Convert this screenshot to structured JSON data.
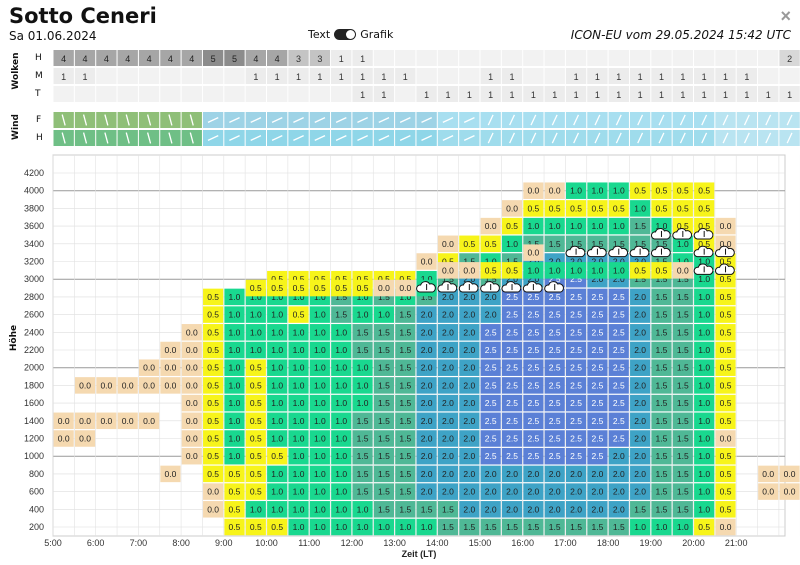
{
  "header": {
    "title": "Sotto Ceneri",
    "date": "Sa 01.06.2024",
    "toggle_left": "Text",
    "toggle_right": "Grafik",
    "model_run": "ICON-EU vom 29.05.2024 15:42 UTC",
    "close_symbol": "×"
  },
  "clouds": {
    "label": "Wolken",
    "rows": [
      "H",
      "M",
      "T"
    ],
    "H": [
      4,
      4,
      4,
      4,
      4,
      4,
      4,
      5,
      5,
      4,
      4,
      3,
      3,
      1,
      1,
      null,
      null,
      null,
      null,
      null,
      null,
      null,
      null,
      null,
      null,
      null,
      null,
      null,
      null,
      null,
      null,
      null,
      null,
      null,
      2,
      2
    ],
    "M": [
      1,
      1,
      null,
      null,
      null,
      null,
      null,
      null,
      null,
      1,
      1,
      1,
      1,
      1,
      1,
      1,
      1,
      null,
      null,
      null,
      1,
      1,
      null,
      null,
      1,
      1,
      1,
      1,
      1,
      1,
      1,
      1,
      1,
      null,
      null,
      null
    ],
    "T": [
      null,
      null,
      null,
      null,
      null,
      null,
      null,
      null,
      null,
      null,
      null,
      null,
      null,
      null,
      1,
      1,
      null,
      1,
      1,
      1,
      1,
      1,
      1,
      1,
      1,
      1,
      1,
      1,
      1,
      1,
      1,
      1,
      1,
      1,
      1,
      1
    ]
  },
  "wind": {
    "label": "Wind",
    "rows": [
      "F",
      "H"
    ]
  },
  "thermals": {
    "y_label": "Höhe",
    "x_label": "Zeit (LT)",
    "y_ticks": [
      "200",
      "400",
      "600",
      "800",
      "1000",
      "1200",
      "1400",
      "1600",
      "1800",
      "2000",
      "2200",
      "2400",
      "2600",
      "2800",
      "3000",
      "3200",
      "3400",
      "3600",
      "3800",
      "4000",
      "4200"
    ],
    "x_ticks": [
      "5:00",
      "6:00",
      "7:00",
      "8:00",
      "9:00",
      "10:00",
      "11:00",
      "12:00",
      "13:00",
      "14:00",
      "15:00",
      "16:00",
      "17:00",
      "18:00",
      "19:00",
      "20:00",
      "21:00"
    ],
    "columns": [
      {
        "b": 1200,
        "v": [
          "0.0",
          "0.0"
        ]
      },
      {
        "b": 1200,
        "v": [
          "0.0",
          "0.0",
          null,
          "0.0"
        ]
      },
      {
        "b": 1200,
        "v": [
          null,
          "0.0",
          null,
          "0.0"
        ]
      },
      {
        "b": 1400,
        "v": [
          "0.0",
          null,
          "0.0"
        ]
      },
      {
        "b": 1400,
        "v": [
          "0.0",
          null,
          "0.0",
          "0.0"
        ]
      },
      {
        "b": 800,
        "v": [
          "0.0",
          null,
          null,
          null,
          null,
          "0.0",
          "0.0",
          "0.0"
        ]
      },
      {
        "b": 1000,
        "v": [
          "0.0",
          "0.0",
          "0.0",
          "0.0",
          "0.0",
          "0.0",
          "0.0",
          "0.0"
        ]
      },
      {
        "b": 400,
        "v": [
          "0.0",
          "0.0",
          "0.5",
          "0.5",
          "0.5",
          "0.5",
          "0.5",
          "0.5",
          "0.5",
          "0.5",
          "0.5",
          "0.5",
          "0.5"
        ]
      },
      {
        "b": 200,
        "v": [
          "0.5",
          "0.5",
          "0.5",
          "0.5",
          "1.0",
          "1.0",
          "1.0",
          "1.0",
          "1.0",
          "1.0",
          "1.0",
          "1.0",
          "1.0",
          "1.0"
        ]
      },
      {
        "b": 200,
        "v": [
          "0.5",
          "1.0",
          "0.5",
          "0.5",
          "0.5",
          "0.5",
          "0.5",
          "0.5",
          "0.5",
          "0.5",
          "1.0",
          "1.0",
          "1.0",
          "1.0"
        ]
      },
      {
        "b": 200,
        "v": [
          "0.5",
          "1.0",
          "1.0",
          "1.0",
          "0.5",
          "1.0",
          "1.0",
          "1.0",
          "1.0",
          "1.0",
          "1.0",
          "1.0",
          "1.0",
          "1.0",
          "0.5"
        ]
      },
      {
        "b": 200,
        "v": [
          "1.0",
          "1.0",
          "1.0",
          "1.0",
          "1.0",
          "1.0",
          "1.0",
          "1.0",
          "1.0",
          "1.0",
          "1.0",
          "1.0",
          "0.5",
          "1.0",
          "0.5"
        ]
      },
      {
        "b": 200,
        "v": [
          "1.0",
          "1.0",
          "1.0",
          "1.0",
          "1.0",
          "1.0",
          "1.0",
          "1.0",
          "1.0",
          "1.0",
          "1.0",
          "1.0",
          "1.0",
          "1.0",
          "0.5"
        ]
      },
      {
        "b": 200,
        "v": [
          "1.0",
          "1.0",
          "1.0",
          "1.0",
          "1.0",
          "1.0",
          "1.0",
          "1.0",
          "1.0",
          "1.0",
          "1.0",
          "1.0",
          "1.5",
          "1.5",
          "0.5"
        ]
      },
      {
        "b": 200,
        "v": [
          "1.0",
          "1.0",
          "1.5",
          "1.5",
          "1.5",
          "1.5",
          "1.5",
          "1.0",
          "1.0",
          "1.0",
          "1.5",
          "1.5",
          "1.0",
          "1.0",
          "0.5"
        ]
      },
      {
        "b": 200,
        "v": [
          "1.0",
          "1.5",
          "1.5",
          "1.5",
          "1.5",
          "1.5",
          "1.5",
          "1.5",
          "1.5",
          "1.5",
          "1.5",
          "1.5",
          "1.0",
          "1.5",
          "0.5"
        ]
      },
      {
        "b": 200,
        "v": [
          "1.0",
          "1.5",
          "1.5",
          "1.5",
          "1.5",
          "1.5",
          "1.5",
          "1.5",
          "1.5",
          "1.5",
          "1.5",
          "1.5",
          "1.5",
          "1.0",
          "0.5"
        ]
      },
      {
        "b": 200,
        "v": [
          "1.0",
          "1.5",
          "2.0",
          "2.0",
          "2.0",
          "2.0",
          "2.0",
          "2.0",
          "2.0",
          "2.0",
          "2.0",
          "2.0",
          "2.0",
          "1.5",
          "1.0",
          "0.0"
        ]
      },
      {
        "b": 200,
        "v": [
          "1.5",
          "1.5",
          "2.0",
          "2.0",
          "2.0",
          "2.0",
          "2.0",
          "2.0",
          "2.0",
          "2.0",
          "2.0",
          "2.0",
          "2.0",
          "2.0",
          "1.5",
          "0.5",
          "0.0"
        ]
      },
      {
        "b": 200,
        "v": [
          "1.5",
          "2.0",
          "2.0",
          "2.0",
          "2.0",
          "2.0",
          "2.0",
          "2.0",
          "2.0",
          "2.0",
          "2.0",
          "2.0",
          "2.0",
          "2.0",
          "2.0",
          "1.5",
          "0.5"
        ]
      },
      {
        "b": 200,
        "v": [
          "1.5",
          "2.0",
          "2.0",
          "2.0",
          "2.5",
          "2.5",
          "2.5",
          "2.5",
          "2.5",
          "2.5",
          "2.5",
          "2.5",
          "2.0",
          "2.0",
          "1.5",
          "1.0",
          "0.5",
          "0.0"
        ]
      },
      {
        "b": 200,
        "v": [
          "1.5",
          "2.0",
          "2.0",
          "2.0",
          "2.5",
          "2.5",
          "2.5",
          "2.5",
          "2.5",
          "2.5",
          "2.5",
          "2.5",
          "2.5",
          "2.5",
          "2.0",
          "1.5",
          "1.0",
          "0.5",
          "0.0"
        ]
      },
      {
        "b": 200,
        "v": [
          "1.5",
          "2.0",
          "2.0",
          "2.0",
          "2.5",
          "2.5",
          "2.5",
          "2.5",
          "2.5",
          "2.5",
          "2.5",
          "2.5",
          "2.5",
          "2.5",
          "2.0",
          "2.0",
          "1.5",
          "1.0",
          "0.5",
          "0.0"
        ]
      },
      {
        "b": 200,
        "v": [
          "1.5",
          "2.0",
          "2.0",
          "2.0",
          "2.5",
          "2.5",
          "2.5",
          "2.5",
          "2.5",
          "2.5",
          "2.5",
          "2.5",
          "2.5",
          "2.5",
          "2.5",
          "2.0",
          "1.5",
          "1.0",
          "0.5",
          "0.0"
        ]
      },
      {
        "b": 200,
        "v": [
          "1.5",
          "2.0",
          "2.0",
          "2.0",
          "2.5",
          "2.5",
          "2.5",
          "2.5",
          "2.5",
          "2.5",
          "2.5",
          "2.5",
          "2.5",
          "2.5",
          "2.5",
          "2.0",
          "1.5",
          "1.0",
          "0.5",
          "1.0"
        ]
      },
      {
        "b": 200,
        "v": [
          "1.5",
          "2.0",
          "2.0",
          "2.0",
          "2.5",
          "2.5",
          "2.5",
          "2.5",
          "2.5",
          "2.5",
          "2.5",
          "2.5",
          "2.5",
          "2.5",
          "2.0",
          "2.0",
          "1.5",
          "1.0",
          "0.5",
          "1.0"
        ]
      },
      {
        "b": 200,
        "v": [
          "1.5",
          "2.0",
          "2.0",
          "2.0",
          "2.0",
          "2.5",
          "2.5",
          "2.5",
          "2.5",
          "2.5",
          "2.5",
          "2.5",
          "2.5",
          "2.5",
          "2.0",
          "2.0",
          "1.5",
          "1.0",
          "0.5",
          "1.0"
        ]
      },
      {
        "b": 200,
        "v": [
          "1.0",
          "1.5",
          "2.0",
          "2.0",
          "2.0",
          "2.0",
          "2.0",
          "2.0",
          "2.0",
          "2.0",
          "2.0",
          "2.0",
          "2.0",
          "2.0",
          "1.5",
          "2.0",
          "1.5",
          "1.5",
          "1.0",
          "0.5"
        ]
      },
      {
        "b": 200,
        "v": [
          "1.0",
          "1.5",
          "1.5",
          "1.5",
          "1.5",
          "1.5",
          "1.5",
          "1.5",
          "1.5",
          "1.5",
          "1.5",
          "1.5",
          "1.5",
          "1.5",
          "1.5",
          "1.5",
          "1.5",
          "1.0",
          "0.5",
          "0.5"
        ]
      },
      {
        "b": 200,
        "v": [
          "1.0",
          "1.5",
          "1.5",
          "1.5",
          "1.5",
          "1.5",
          "1.5",
          "1.5",
          "1.5",
          "1.5",
          "1.5",
          "1.5",
          "1.5",
          "1.5",
          "1.5",
          "1.0",
          "1.0",
          "0.5",
          "0.5",
          "0.5"
        ]
      },
      {
        "b": 200,
        "v": [
          "0.5",
          "1.0",
          "1.0",
          "1.0",
          "1.0",
          "1.0",
          "1.0",
          "1.0",
          "1.0",
          "1.0",
          "1.0",
          "1.0",
          "1.0",
          "1.0",
          "1.0",
          "1.0",
          "0.5",
          "0.5",
          "0.5",
          "0.5"
        ]
      },
      {
        "b": 200,
        "v": [
          "0.0",
          "0.5",
          "0.5",
          "0.5",
          "0.5",
          "0.0",
          "0.5",
          "0.5",
          "0.5",
          "0.5",
          "0.5",
          "0.5",
          "0.5",
          "0.5",
          "0.5",
          "0.5",
          "0.0",
          "0.0"
        ]
      },
      {
        "b": 500,
        "v": []
      },
      {
        "b": 600,
        "v": [
          "0.0",
          "0.0"
        ]
      },
      {
        "b": 600,
        "v": [
          "0.0",
          "0.0"
        ]
      },
      {
        "b": 600,
        "v": [
          null,
          "0.0",
          "0.0"
        ]
      }
    ],
    "cloud_icons": [
      {
        "col": 17,
        "level": 2900
      },
      {
        "col": 18,
        "level": 2900
      },
      {
        "col": 19,
        "level": 2900
      },
      {
        "col": 20,
        "level": 2900
      },
      {
        "col": 21,
        "level": 2900
      },
      {
        "col": 22,
        "level": 2900
      },
      {
        "col": 23,
        "level": 2900
      },
      {
        "col": 24,
        "level": 3300
      },
      {
        "col": 25,
        "level": 3300
      },
      {
        "col": 26,
        "level": 3300
      },
      {
        "col": 27,
        "level": 3300
      },
      {
        "col": 28,
        "level": 3300
      },
      {
        "col": 28,
        "level": 3500
      },
      {
        "col": 29,
        "level": 3500
      },
      {
        "col": 30,
        "level": 3500
      },
      {
        "col": 30,
        "level": 3300
      },
      {
        "col": 31,
        "level": 3300
      },
      {
        "col": 31,
        "level": 3100
      },
      {
        "col": 30,
        "level": 3100
      }
    ],
    "top_row_values": [
      {
        "col": 9,
        "level": 2900,
        "v": "0.5"
      },
      {
        "col": 10,
        "level": 2900,
        "v": "0.5"
      },
      {
        "col": 11,
        "level": 2900,
        "v": "0.5"
      },
      {
        "col": 12,
        "level": 2900,
        "v": "0.5"
      },
      {
        "col": 13,
        "level": 2900,
        "v": "0.5"
      },
      {
        "col": 14,
        "level": 2900,
        "v": "0.5"
      },
      {
        "col": 15,
        "level": 2900,
        "v": "0.0"
      },
      {
        "col": 16,
        "level": 2900,
        "v": "0.0"
      },
      {
        "col": 17,
        "level": 2900,
        "v": "1.0"
      },
      {
        "col": 18,
        "level": 3100,
        "v": "0.0"
      },
      {
        "col": 19,
        "level": 3100,
        "v": "0.0"
      },
      {
        "col": 20,
        "level": 3100,
        "v": "0.5"
      },
      {
        "col": 21,
        "level": 3100,
        "v": "0.5"
      },
      {
        "col": 22,
        "level": 3100,
        "v": "1.0"
      },
      {
        "col": 23,
        "level": 3100,
        "v": "1.0"
      },
      {
        "col": 24,
        "level": 3100,
        "v": "1.0"
      },
      {
        "col": 25,
        "level": 3100,
        "v": "1.0"
      },
      {
        "col": 26,
        "level": 3100,
        "v": "1.0"
      },
      {
        "col": 27,
        "level": 3100,
        "v": "0.5"
      },
      {
        "col": 28,
        "level": 3100,
        "v": "0.5"
      },
      {
        "col": 29,
        "level": 3100,
        "v": "0.0"
      },
      {
        "col": 22,
        "level": 3300,
        "v": "0.0"
      }
    ],
    "colors": {
      "0.0": "#f5d9b0",
      "0.5": "#f7f41a",
      "1.0": "#19d88f",
      "1.5": "#4fb896",
      "2.0": "#3ea3c6",
      "2.5": "#5b80d6"
    }
  }
}
